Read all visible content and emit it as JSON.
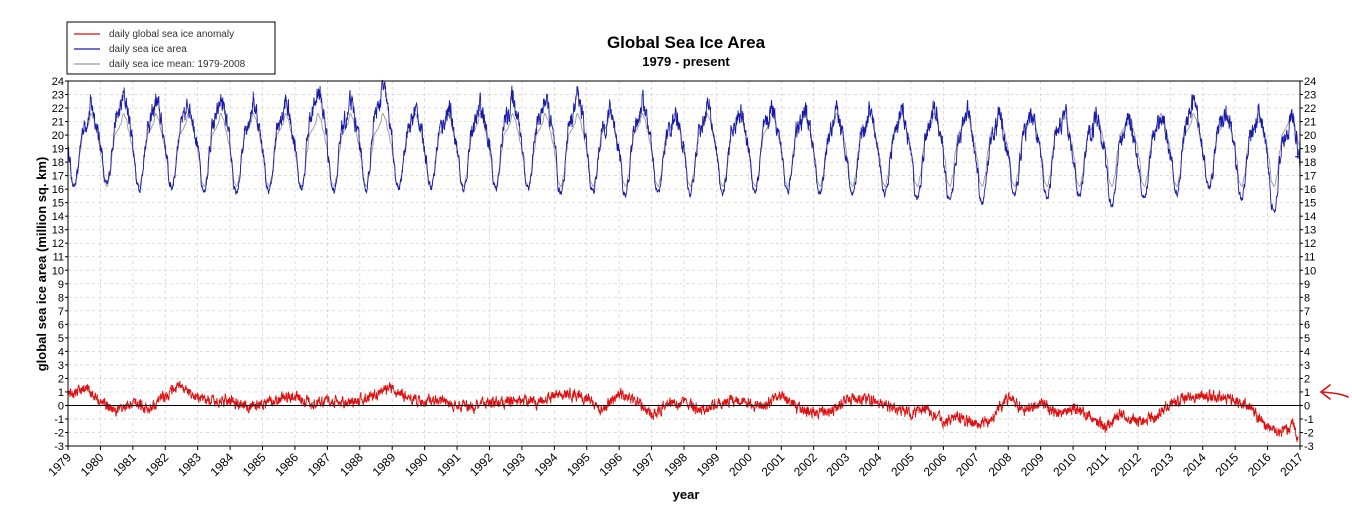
{
  "chart_data": {
    "type": "line",
    "title": "Global Sea Ice Area",
    "subtitle": "1979 - present",
    "xlabel": "year",
    "ylabel": "global sea ice area (million sq. km)",
    "xlim": [
      1979,
      2017
    ],
    "ylim": [
      -3,
      24
    ],
    "x_ticks": [
      "1979",
      "1980",
      "1981",
      "1982",
      "1983",
      "1984",
      "1985",
      "1986",
      "1987",
      "1988",
      "1989",
      "1990",
      "1991",
      "1992",
      "1993",
      "1994",
      "1995",
      "1996",
      "1997",
      "1998",
      "1999",
      "2000",
      "2001",
      "2002",
      "2003",
      "2004",
      "2005",
      "2006",
      "2007",
      "2008",
      "2009",
      "2010",
      "2011",
      "2012",
      "2013",
      "2014",
      "2015",
      "2016",
      "2017"
    ],
    "y_ticks": [
      "-3",
      "-2",
      "-1",
      "0",
      "1",
      "2",
      "3",
      "4",
      "5",
      "6",
      "7",
      "8",
      "9",
      "10",
      "11",
      "12",
      "13",
      "14",
      "15",
      "16",
      "17",
      "18",
      "19",
      "20",
      "21",
      "22",
      "23",
      "24"
    ],
    "grid": true,
    "legend_position": "top-left",
    "legend": [
      {
        "label": "daily global sea ice anomaly",
        "color": "#dd1111"
      },
      {
        "label": "daily sea ice area",
        "color": "#1a1aaa"
      },
      {
        "label": "daily sea ice mean: 1979-2008",
        "color": "#999999"
      }
    ],
    "climatology": {
      "note_units": "month of year -> million sq. km",
      "months": [
        1,
        2,
        3,
        4,
        5,
        6,
        7,
        8,
        9,
        10,
        11,
        12
      ],
      "values": [
        18.3,
        16.5,
        16.2,
        17.0,
        18.8,
        20.1,
        20.4,
        20.8,
        21.6,
        21.2,
        20.3,
        19.4
      ]
    },
    "series": [
      {
        "name": "daily global sea ice anomaly",
        "color": "#dd1111",
        "x": [
          1979.0,
          1979.5,
          1980.0,
          1980.5,
          1981.0,
          1981.5,
          1982.0,
          1982.5,
          1983.0,
          1983.5,
          1984.0,
          1984.5,
          1985.0,
          1985.5,
          1986.0,
          1986.5,
          1987.0,
          1987.5,
          1988.0,
          1988.5,
          1989.0,
          1989.5,
          1990.0,
          1990.5,
          1991.0,
          1991.5,
          1992.0,
          1992.5,
          1993.0,
          1993.5,
          1994.0,
          1994.5,
          1995.0,
          1995.5,
          1996.0,
          1996.5,
          1997.0,
          1997.5,
          1998.0,
          1998.5,
          1999.0,
          1999.5,
          2000.0,
          2000.5,
          2001.0,
          2001.5,
          2002.0,
          2002.5,
          2003.0,
          2003.5,
          2004.0,
          2004.5,
          2005.0,
          2005.5,
          2006.0,
          2006.5,
          2007.0,
          2007.5,
          2008.0,
          2008.5,
          2009.0,
          2009.5,
          2010.0,
          2010.5,
          2011.0,
          2011.5,
          2012.0,
          2012.5,
          2013.0,
          2013.5,
          2014.0,
          2014.5,
          2015.0,
          2015.5,
          2016.0,
          2016.5,
          2016.8,
          2016.95
        ],
        "y": [
          0.9,
          1.3,
          0.3,
          -0.4,
          0.2,
          -0.2,
          0.8,
          1.4,
          0.6,
          0.3,
          0.4,
          -0.1,
          0.1,
          0.5,
          0.7,
          0.1,
          0.3,
          0.2,
          0.4,
          0.8,
          1.3,
          0.5,
          0.2,
          0.4,
          0.0,
          -0.1,
          0.3,
          0.2,
          0.4,
          0.2,
          0.8,
          0.9,
          0.5,
          -0.3,
          0.9,
          0.4,
          -0.7,
          0.1,
          0.2,
          -0.3,
          0.1,
          0.4,
          0.2,
          0.0,
          0.8,
          -0.2,
          -0.6,
          -0.5,
          0.3,
          0.5,
          0.1,
          -0.2,
          -0.6,
          -0.3,
          -1.2,
          -0.8,
          -1.5,
          -1.0,
          0.6,
          -0.4,
          0.3,
          -0.6,
          -0.3,
          -0.8,
          -1.6,
          -0.6,
          -1.2,
          -0.9,
          0.2,
          0.5,
          0.7,
          0.6,
          0.3,
          -0.2,
          -1.6,
          -1.9,
          -1.4,
          -2.9
        ]
      },
      {
        "name": "daily sea ice area",
        "color": "#1a1aaa",
        "seasonal_min": [
          16.2,
          16.3,
          16.0,
          16.1,
          15.8,
          15.6,
          15.8,
          16.0,
          15.9,
          16.0,
          16.0,
          16.2,
          15.9,
          16.1,
          16.0,
          15.6,
          15.8,
          15.5,
          15.7,
          15.6,
          15.7,
          15.8,
          15.9,
          15.7,
          15.7,
          15.6,
          15.2,
          15.0,
          15.0,
          15.5,
          15.3,
          15.4,
          14.8,
          15.2,
          15.7,
          16.0,
          15.3,
          14.4
        ],
        "seasonal_max": [
          22.2,
          22.9,
          22.5,
          22.4,
          22.6,
          22.5,
          22.4,
          23.4,
          22.3,
          23.5,
          22.0,
          22.0,
          22.2,
          22.9,
          22.7,
          23.1,
          21.9,
          22.6,
          21.7,
          22.2,
          21.9,
          22.2,
          21.8,
          21.5,
          21.8,
          21.6,
          22.1,
          21.7,
          21.5,
          21.7,
          21.6,
          21.6,
          21.5,
          21.6,
          22.6,
          21.9,
          21.7,
          21.5
        ]
      },
      {
        "name": "daily sea ice mean: 1979-2008",
        "color": "#999999"
      }
    ]
  }
}
